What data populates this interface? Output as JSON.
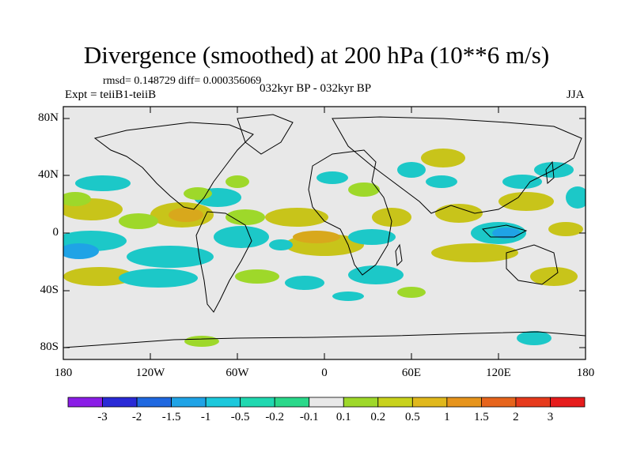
{
  "title": "Divergence (smoothed) at 200 hPa (10**6 m/s)",
  "stats": "rmsd= 0.148729  diff= 0.000356069",
  "expt": "Expt = teiiB1-teiiB",
  "period": "032kyr BP - 032kyr BP",
  "season": "JJA",
  "lat_ticks": [
    "80N",
    "40N",
    "0",
    "40S",
    "80S"
  ],
  "lon_ticks": [
    "180",
    "120W",
    "60W",
    "0",
    "60E",
    "120E",
    "180"
  ],
  "colorbar": {
    "labels": [
      "-3",
      "-2",
      "-1.5",
      "-1",
      "-0.5",
      "-0.2",
      "-0.1",
      "0.1",
      "0.2",
      "0.5",
      "1",
      "1.5",
      "2",
      "3"
    ],
    "colors": [
      "#8a1de6",
      "#2a2ad6",
      "#1f68e0",
      "#1fa3e6",
      "#1cc8dc",
      "#20d8b0",
      "#2ad88a",
      "#e8e8e8",
      "#9ed82a",
      "#c8d21c",
      "#e0b81c",
      "#e6941c",
      "#e6641c",
      "#e63a1c",
      "#e61c1c"
    ]
  },
  "palette": {
    "ocean_background": "#e8e8e8",
    "positive_weak": "#9ed82a",
    "positive_mid": "#c8c41a",
    "positive_strong": "#d8a81c",
    "negative_weak": "#2ad88a",
    "negative_mid": "#1cc8c8",
    "negative_strong": "#1fa3e6"
  }
}
